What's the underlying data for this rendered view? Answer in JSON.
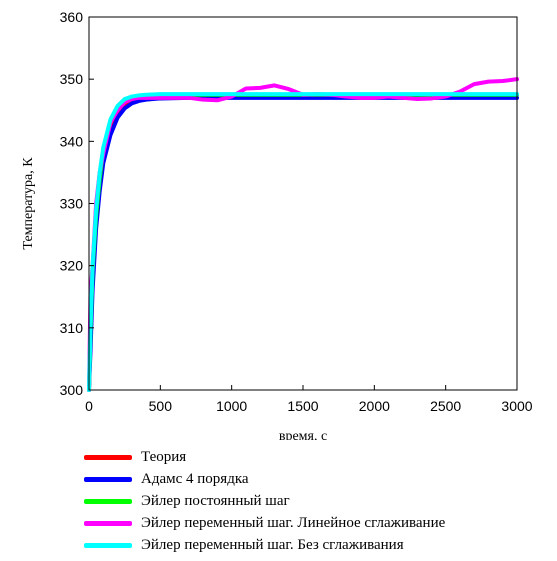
{
  "chart_data": {
    "type": "line",
    "title": "",
    "xlabel": "время, с",
    "ylabel": "Температура, К",
    "xlim": [
      0,
      3000
    ],
    "ylim": [
      300,
      360
    ],
    "xticks": [
      0,
      500,
      1000,
      1500,
      2000,
      2500,
      3000
    ],
    "yticks": [
      300,
      310,
      320,
      330,
      340,
      350,
      360
    ],
    "grid": false,
    "legend_position": "bottom",
    "series": [
      {
        "name": "Теория",
        "color": "#ff0000",
        "x": [
          0,
          10,
          25,
          50,
          75,
          100,
          150,
          200,
          250,
          300,
          350,
          400,
          500,
          700,
          1000,
          1500,
          2000,
          2500,
          3000
        ],
        "y": [
          300,
          308,
          318,
          327,
          333,
          337.5,
          342,
          344.5,
          346,
          346.6,
          347,
          347.2,
          347.4,
          347.5,
          347.5,
          347.5,
          347.5,
          347.5,
          347.5
        ]
      },
      {
        "name": "Адамс 4 порядка",
        "color": "#0000ff",
        "x": [
          0,
          10,
          25,
          50,
          75,
          100,
          150,
          200,
          250,
          300,
          350,
          400,
          500,
          700,
          1000,
          1500,
          2000,
          2500,
          3000
        ],
        "y": [
          300,
          306,
          316,
          326,
          332,
          336.5,
          341,
          343.8,
          345.3,
          346.1,
          346.5,
          346.7,
          346.9,
          347,
          347,
          347,
          347,
          347,
          347
        ]
      },
      {
        "name": "Эйлер постоянный шаг",
        "color": "#00ff00",
        "x": [
          0,
          10,
          25,
          50,
          75,
          100,
          150,
          200,
          250,
          300,
          350,
          400,
          500,
          700,
          1000,
          1500,
          2000,
          2500,
          3000
        ],
        "y": [
          300,
          309,
          319,
          328,
          334,
          338.5,
          343,
          345.3,
          346.5,
          347,
          347.3,
          347.4,
          347.5,
          347.5,
          347.5,
          347.5,
          347.5,
          347.5,
          347.5
        ]
      },
      {
        "name": "Эйлер переменный шаг. Линейное сглаживание",
        "color": "#ff00ff",
        "x": [
          0,
          10,
          25,
          50,
          75,
          100,
          150,
          200,
          250,
          300,
          350,
          400,
          500,
          600,
          700,
          800,
          900,
          1000,
          1100,
          1200,
          1300,
          1400,
          1500,
          1600,
          1700,
          1800,
          1900,
          2000,
          2100,
          2200,
          2300,
          2400,
          2500,
          2600,
          2700,
          2800,
          2900,
          3000
        ],
        "y": [
          300,
          315,
          320,
          330,
          335,
          338,
          343,
          345,
          346.3,
          346.8,
          347,
          347,
          347,
          347,
          347,
          346.7,
          346.6,
          347.2,
          348.5,
          348.6,
          349,
          348.4,
          347.5,
          347.6,
          347.5,
          347.2,
          347,
          347,
          347.2,
          347,
          346.8,
          346.9,
          347.2,
          348,
          349.2,
          349.6,
          349.7,
          350
        ]
      },
      {
        "name": "Эйлер переменный шаг. Без сглаживания",
        "color": "#00ffff",
        "x": [
          0,
          10,
          25,
          50,
          75,
          100,
          150,
          200,
          250,
          300,
          350,
          400,
          500,
          700,
          1000,
          1500,
          2000,
          2500,
          3000
        ],
        "y": [
          300,
          310,
          320,
          329,
          335,
          339,
          343.5,
          345.7,
          346.8,
          347.2,
          347.4,
          347.5,
          347.6,
          347.6,
          347.6,
          347.6,
          347.6,
          347.6,
          347.6
        ]
      }
    ]
  }
}
